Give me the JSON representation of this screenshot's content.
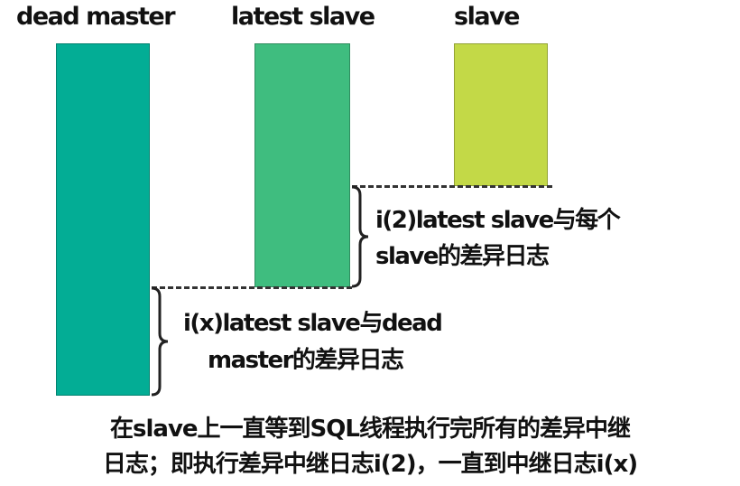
{
  "columns": {
    "dead_master": {
      "label": "dead  master",
      "color": "#03ad95"
    },
    "latest_slave": {
      "label": "latest slave",
      "color": "#3fbd7f"
    },
    "slave": {
      "label": "slave",
      "color": "#c3d947"
    }
  },
  "notes": {
    "relay_diff": {
      "line1": "i(2)latest  slave与每个",
      "line2": "slave的差异日志"
    },
    "master_diff": {
      "line1": "i(x)latest  slave与dead",
      "line2": "master的差异日志"
    }
  },
  "caption": {
    "line1": "在slave上一直等到SQL线程执行完所有的差异中继",
    "line2": "日志；即执行差异中继日志i(2)，一直到中继日志i(x)"
  }
}
